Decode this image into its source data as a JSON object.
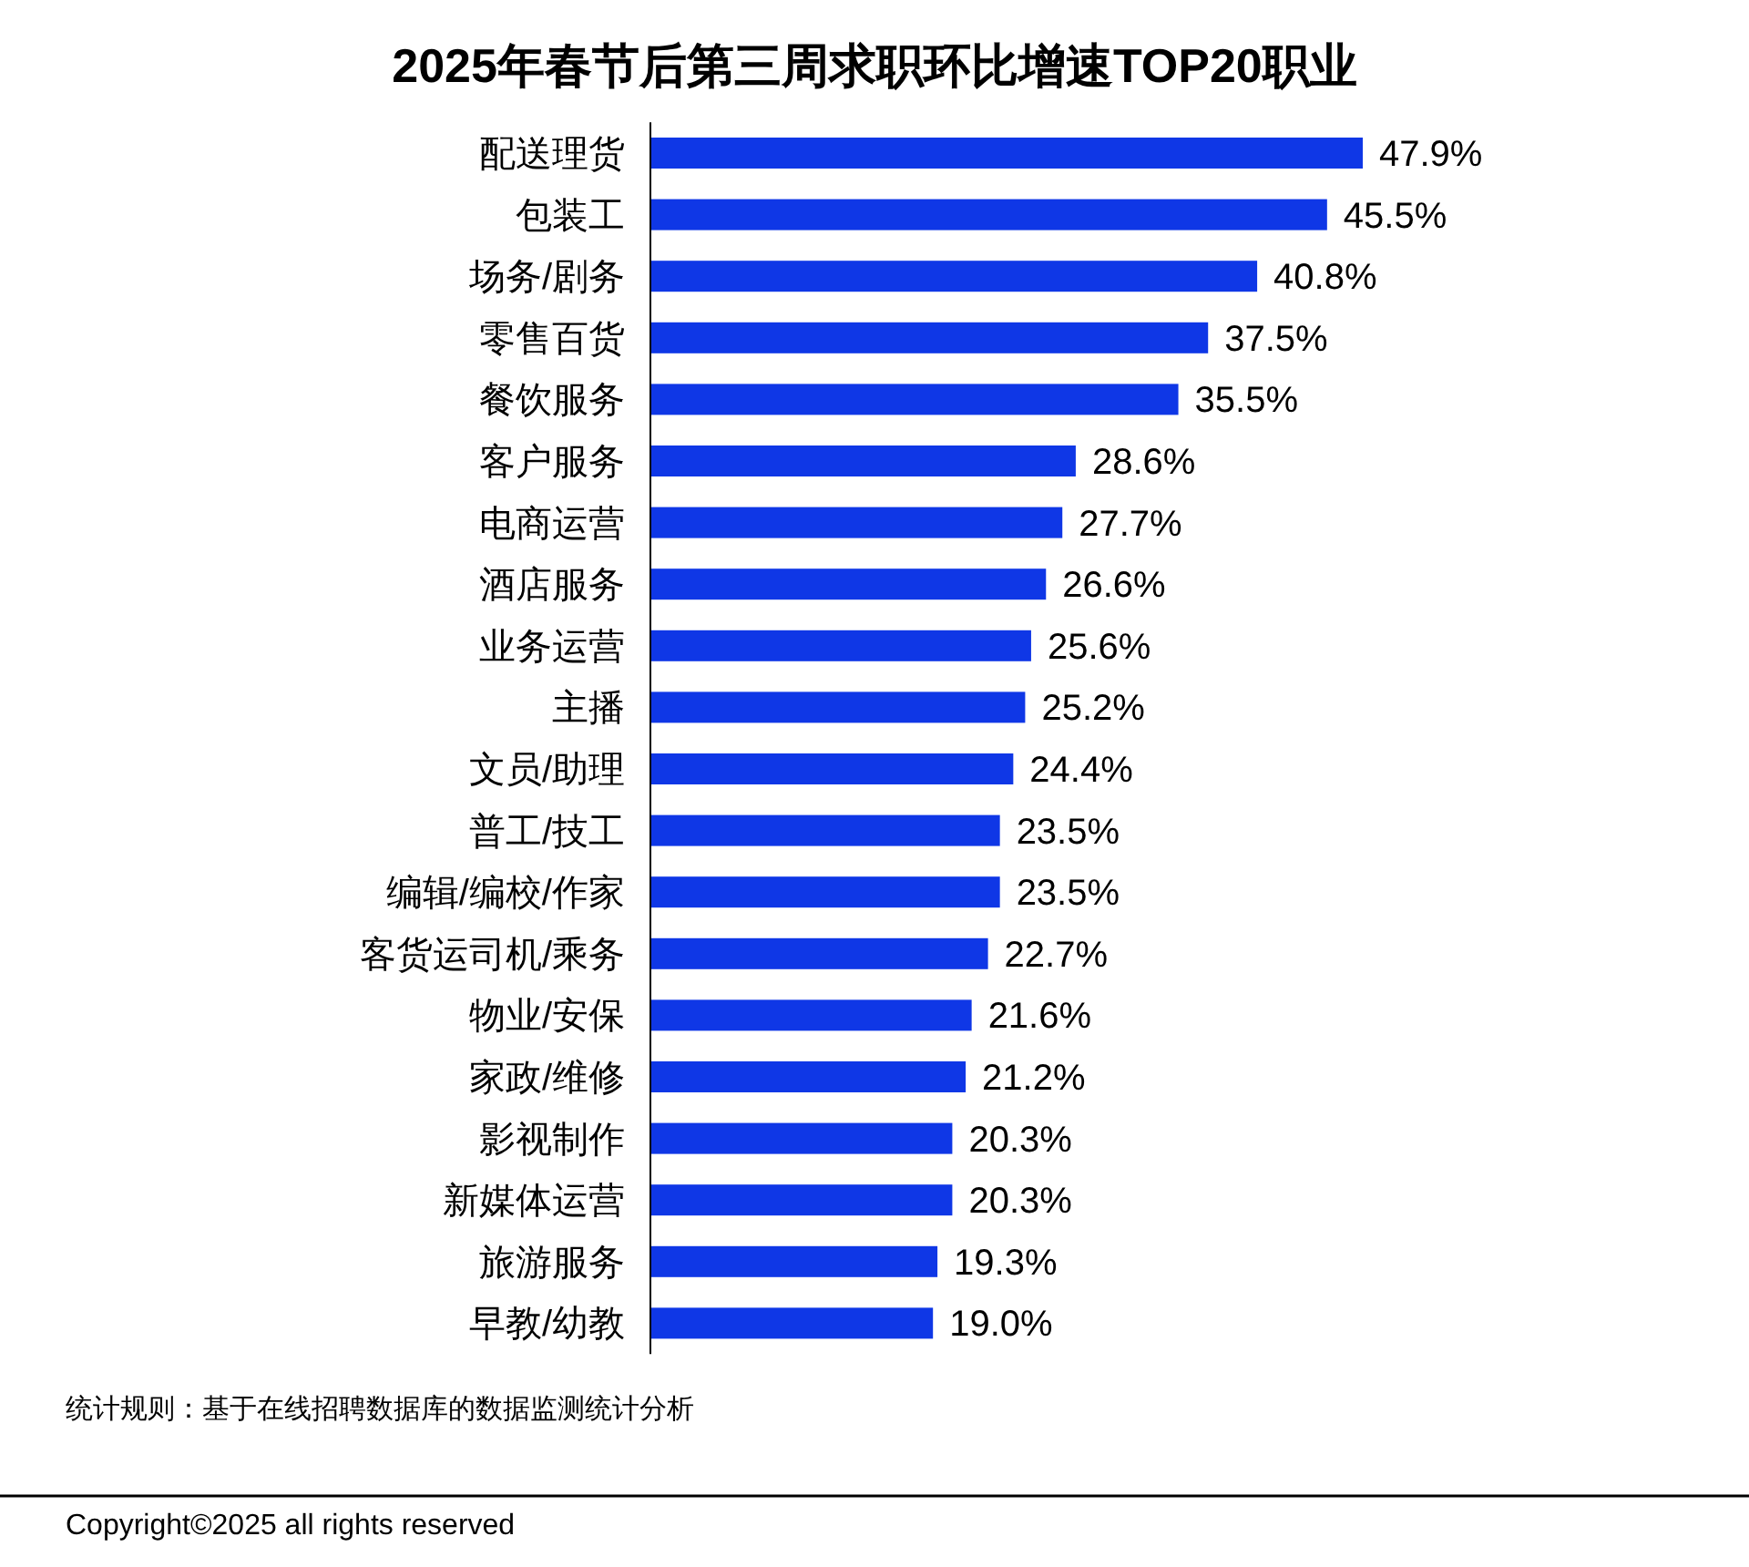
{
  "chart_data": {
    "type": "bar",
    "orientation": "horizontal",
    "title": "2025年春节后第三周求职环比增速TOP20职业",
    "categories": [
      "配送理货",
      "包装工",
      "场务/剧务",
      "零售百货",
      "餐饮服务",
      "客户服务",
      "电商运营",
      "酒店服务",
      "业务运营",
      "主播",
      "文员/助理",
      "普工/技工",
      "编辑/编校/作家",
      "客货运司机/乘务",
      "物业/安保",
      "家政/维修",
      "影视制作",
      "新媒体运营",
      "旅游服务",
      "早教/幼教"
    ],
    "values": [
      47.9,
      45.5,
      40.8,
      37.5,
      35.5,
      28.6,
      27.7,
      26.6,
      25.6,
      25.2,
      24.4,
      23.5,
      23.5,
      22.7,
      21.6,
      21.2,
      20.3,
      20.3,
      19.3,
      19.0
    ],
    "value_labels": [
      "47.9%",
      "45.5%",
      "40.8%",
      "37.5%",
      "35.5%",
      "28.6%",
      "27.7%",
      "26.6%",
      "25.6%",
      "25.2%",
      "24.4%",
      "23.5%",
      "23.5%",
      "22.7%",
      "21.6%",
      "21.2%",
      "20.3%",
      "20.3%",
      "19.3%",
      "19.0%"
    ],
    "color": "#0f37e6",
    "annotations": [
      "统计规则：基于在线招聘数据库的数据监测统计分析",
      "Copyright©2025 all rights reserved"
    ]
  }
}
